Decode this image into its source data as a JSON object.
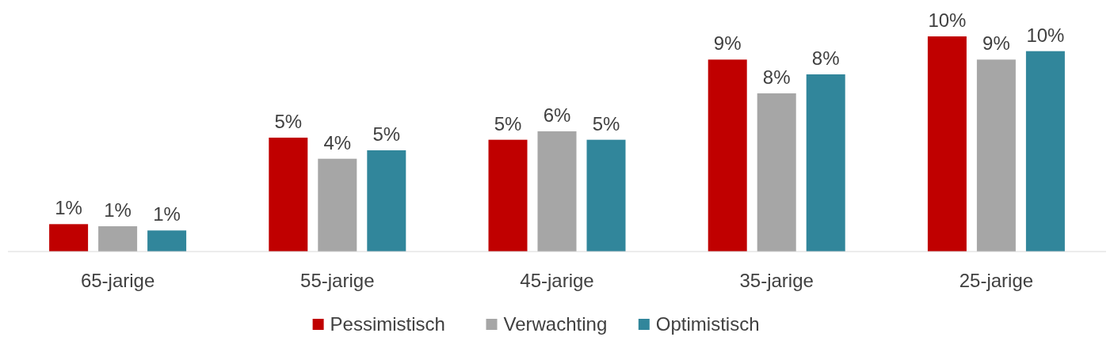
{
  "chart_data": {
    "type": "bar",
    "categories": [
      "65-jarige",
      "55-jarige",
      "45-jarige",
      "35-jarige",
      "25-jarige"
    ],
    "series": [
      {
        "name": "Pessimistisch",
        "color": "#c00000",
        "values": [
          1.3,
          5.4,
          5.3,
          9.1,
          10.2
        ],
        "value_labels": [
          "1%",
          "5%",
          "5%",
          "9%",
          "10%"
        ]
      },
      {
        "name": "Verwachting",
        "color": "#a6a6a6",
        "values": [
          1.2,
          4.4,
          5.7,
          7.5,
          9.1
        ],
        "value_labels": [
          "1%",
          "4%",
          "6%",
          "8%",
          "9%"
        ]
      },
      {
        "name": "Optimistisch",
        "color": "#31869b",
        "values": [
          1.0,
          4.8,
          5.3,
          8.4,
          9.5
        ],
        "value_labels": [
          "1%",
          "5%",
          "5%",
          "8%",
          "10%"
        ]
      }
    ],
    "legend": "bottom"
  }
}
